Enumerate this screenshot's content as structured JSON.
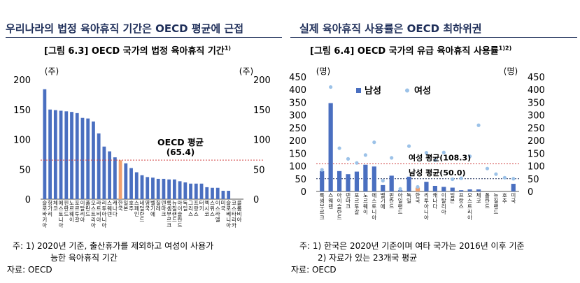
{
  "headers": {
    "left": "우리나라의 법정 육아휴직 기간은 OECD 평균에 근접",
    "right": "실제 육아휴직 사용률은 OECD 최하위권"
  },
  "figures": {
    "left": {
      "title": "[그림 6.3] OECD 국가의 법정 육아휴직 기간",
      "sup": "1)"
    },
    "right": {
      "title": "[그림 6.4] OECD 국가의 유급 육아휴직 사용률",
      "sup": "1)2)"
    }
  },
  "notes": {
    "left": [
      "주:  1)  2020년 기준, 출산휴가를 제외하고 여성이 사용가",
      "능한 육아휴직 기간",
      "자료: OECD"
    ],
    "right": [
      "주:  1) 한국은 2020년 기준이며 여타 국가는 2016년 이후 기준",
      "2) 자료가 있는 23개국 평균",
      "자료: OECD"
    ]
  },
  "colors": {
    "bar": "#4a6fc0",
    "korea": "#f0a070",
    "female": "#9cc2e8",
    "avg_line": "#d04040",
    "avg_line2": "#1f2f5a"
  },
  "chart_data": [
    {
      "type": "bar",
      "ylabel": "(주)",
      "ylabel_right": "(주)",
      "ylim": [
        0,
        200
      ],
      "yticks": [
        0,
        50,
        100,
        150,
        200
      ],
      "categories": [
        "슬로바키아",
        "헝가리",
        "체코",
        "에스토니아",
        "핀란드",
        "노르웨이",
        "포르투갈",
        "이탈리아",
        "폴란드",
        "오스트리아",
        "라트비아",
        "리투아니아",
        "스웨덴",
        "캐나다",
        "한국",
        "일본",
        "호주",
        "스페인",
        "네덜란드",
        "영국",
        "벨기에",
        "칠레",
        "덴마크",
        "룩셈부르크",
        "뉴질랜드",
        "아이슬란드",
        "독일",
        "그리스",
        "프랑스",
        "터키",
        "멕시코",
        "스위스",
        "이스라엘",
        "미국",
        "슬로베니아",
        "코스타리카",
        "콜롬비아"
      ],
      "values": [
        184,
        150,
        149,
        148,
        147,
        146,
        144,
        136,
        135,
        130,
        110,
        88,
        80,
        70,
        65,
        60,
        52,
        45,
        40,
        37,
        36,
        34,
        34,
        33,
        33,
        30,
        28,
        26,
        26,
        26,
        20,
        19,
        19,
        14,
        14,
        0,
        0
      ],
      "highlight": "한국",
      "reference_line": {
        "label": "OECD 평균",
        "value_label": "(65.4)",
        "value": 65.4
      }
    },
    {
      "type": "bar",
      "ylabel": "(명)",
      "ylabel_right": "(명)",
      "ylim": [
        0,
        450
      ],
      "yticks": [
        0,
        50,
        100,
        150,
        200,
        250,
        300,
        350,
        400,
        450
      ],
      "categories": [
        "룩셈부르크",
        "스웨덴",
        "아이슬란드",
        "덴마크",
        "포르투갈",
        "노르웨이",
        "에스토니아",
        "벨기에",
        "핀란드",
        "아일랜드",
        "독일",
        "한국",
        "리투아니아",
        "캐나다",
        "이탈리아",
        "일본",
        "프랑스",
        "오스트리아",
        "체코",
        "폴란드",
        "뉴질랜드",
        "호주",
        "미국"
      ],
      "series": [
        {
          "name": "남성",
          "values": [
            80,
            347,
            80,
            68,
            78,
            105,
            98,
            25,
            62,
            5,
            58,
            15,
            38,
            22,
            18,
            15,
            5,
            8,
            8,
            0,
            0,
            0,
            30
          ]
        },
        {
          "name": "여성",
          "values": [
            85,
            410,
            170,
            128,
            112,
            143,
            193,
            42,
            132,
            10,
            178,
            18,
            152,
            123,
            153,
            48,
            52,
            138,
            260,
            90,
            68,
            54,
            50
          ]
        }
      ],
      "reference_lines": [
        {
          "label": "여성 평균(108.3)",
          "value": 108.3
        },
        {
          "label": "남성 평균(50.0)",
          "value": 50.0
        }
      ],
      "highlight": "한국"
    }
  ]
}
